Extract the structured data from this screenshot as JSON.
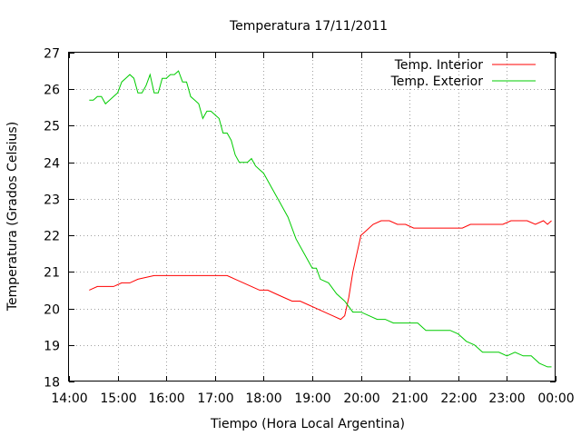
{
  "chart_data": {
    "type": "line",
    "title": "Temperatura 17/11/2011",
    "xlabel": "Tiempo (Hora Local Argentina)",
    "ylabel": "Temperatura (Grados Celsius)",
    "xlim": [
      "14:00",
      "00:00"
    ],
    "ylim": [
      18,
      27
    ],
    "x_ticks": [
      "14:00",
      "15:00",
      "16:00",
      "17:00",
      "18:00",
      "19:00",
      "20:00",
      "21:00",
      "22:00",
      "23:00",
      "00:00"
    ],
    "y_ticks": [
      18,
      19,
      20,
      21,
      22,
      23,
      24,
      25,
      26,
      27
    ],
    "grid": true,
    "legend_position": "top-right",
    "series": [
      {
        "name": "Temp. Interior",
        "color": "#ff0000",
        "x": [
          "14:25",
          "14:35",
          "14:55",
          "15:05",
          "15:15",
          "15:25",
          "15:45",
          "15:55",
          "16:05",
          "16:15",
          "16:25",
          "16:35",
          "16:45",
          "16:55",
          "17:05",
          "17:15",
          "17:25",
          "17:35",
          "17:45",
          "17:55",
          "18:05",
          "18:15",
          "18:25",
          "18:35",
          "18:45",
          "18:55",
          "19:05",
          "19:15",
          "19:25",
          "19:35",
          "19:40",
          "19:45",
          "19:50",
          "19:55",
          "20:00",
          "20:05",
          "20:15",
          "20:25",
          "20:35",
          "20:45",
          "20:55",
          "21:05",
          "21:15",
          "21:25",
          "21:35",
          "21:45",
          "21:55",
          "22:05",
          "22:15",
          "22:25",
          "22:35",
          "22:45",
          "22:55",
          "23:05",
          "23:15",
          "23:25",
          "23:35",
          "23:45",
          "23:50",
          "23:55"
        ],
        "values": [
          20.5,
          20.6,
          20.6,
          20.7,
          20.7,
          20.8,
          20.9,
          20.9,
          20.9,
          20.9,
          20.9,
          20.9,
          20.9,
          20.9,
          20.9,
          20.9,
          20.8,
          20.7,
          20.6,
          20.5,
          20.5,
          20.4,
          20.3,
          20.2,
          20.2,
          20.1,
          20.0,
          19.9,
          19.8,
          19.7,
          19.8,
          20.3,
          21.0,
          21.5,
          22.0,
          22.1,
          22.3,
          22.4,
          22.4,
          22.3,
          22.3,
          22.2,
          22.2,
          22.2,
          22.2,
          22.2,
          22.2,
          22.2,
          22.3,
          22.3,
          22.3,
          22.3,
          22.3,
          22.4,
          22.4,
          22.4,
          22.3,
          22.4,
          22.3,
          22.4
        ]
      },
      {
        "name": "Temp. Exterior",
        "color": "#00cc00",
        "x": [
          "14:25",
          "14:30",
          "14:35",
          "14:40",
          "14:45",
          "14:50",
          "14:55",
          "15:00",
          "15:05",
          "15:10",
          "15:15",
          "15:20",
          "15:25",
          "15:30",
          "15:35",
          "15:40",
          "15:45",
          "15:50",
          "15:55",
          "16:00",
          "16:05",
          "16:10",
          "16:15",
          "16:20",
          "16:25",
          "16:30",
          "16:35",
          "16:40",
          "16:45",
          "16:50",
          "16:55",
          "17:00",
          "17:05",
          "17:10",
          "17:15",
          "17:20",
          "17:25",
          "17:30",
          "17:35",
          "17:40",
          "17:45",
          "17:50",
          "17:55",
          "18:00",
          "18:10",
          "18:20",
          "18:30",
          "18:40",
          "18:50",
          "19:00",
          "19:05",
          "19:10",
          "19:20",
          "19:30",
          "19:40",
          "19:50",
          "20:00",
          "20:10",
          "20:20",
          "20:30",
          "20:40",
          "20:50",
          "21:00",
          "21:10",
          "21:20",
          "21:30",
          "21:40",
          "21:50",
          "22:00",
          "22:10",
          "22:20",
          "22:30",
          "22:40",
          "22:50",
          "23:00",
          "23:10",
          "23:20",
          "23:30",
          "23:40",
          "23:50",
          "23:55"
        ],
        "values": [
          25.7,
          25.7,
          25.8,
          25.8,
          25.6,
          25.7,
          25.8,
          25.9,
          26.2,
          26.3,
          26.4,
          26.3,
          25.9,
          25.9,
          26.1,
          26.4,
          25.9,
          25.9,
          26.3,
          26.3,
          26.4,
          26.4,
          26.5,
          26.2,
          26.2,
          25.8,
          25.7,
          25.6,
          25.2,
          25.4,
          25.4,
          25.3,
          25.2,
          24.8,
          24.8,
          24.6,
          24.2,
          24.0,
          24.0,
          24.0,
          24.1,
          23.9,
          23.8,
          23.7,
          23.3,
          22.9,
          22.5,
          21.9,
          21.5,
          21.1,
          21.1,
          20.8,
          20.7,
          20.4,
          20.2,
          19.9,
          19.9,
          19.8,
          19.7,
          19.7,
          19.6,
          19.6,
          19.6,
          19.6,
          19.4,
          19.4,
          19.4,
          19.4,
          19.3,
          19.1,
          19.0,
          18.8,
          18.8,
          18.8,
          18.7,
          18.8,
          18.7,
          18.7,
          18.5,
          18.4,
          18.4
        ]
      }
    ]
  }
}
